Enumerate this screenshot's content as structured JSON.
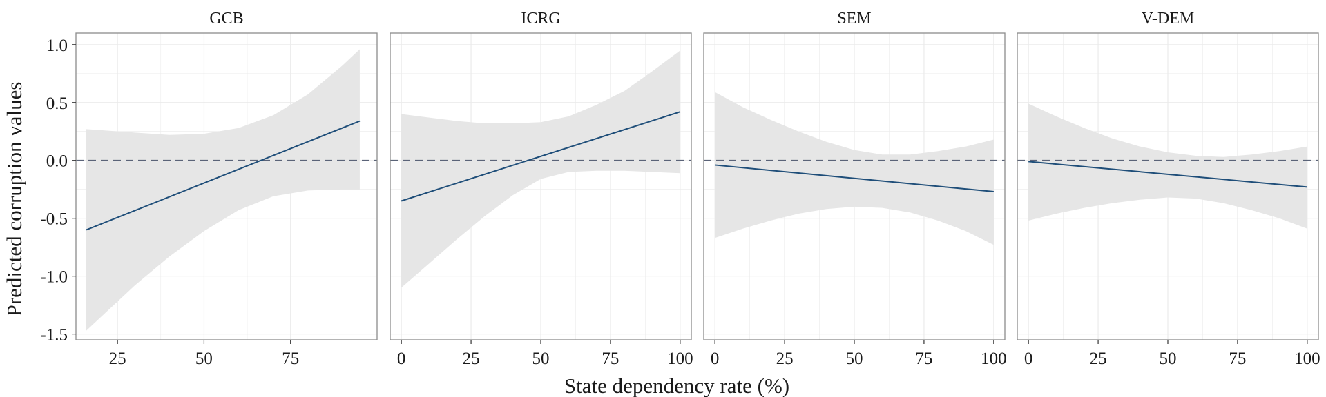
{
  "chart_data": {
    "type": "line",
    "xlabel": "State dependency rate (%)",
    "ylabel": "Predicted corruption values",
    "ylim": [
      -1.55,
      1.1
    ],
    "yticks": [
      1.0,
      0.5,
      0.0,
      -0.5,
      -1.0,
      -1.5
    ],
    "ytick_labels": [
      "1.0",
      "0.5",
      "0.0",
      "-0.5",
      "-1.0",
      "-1.5"
    ],
    "grid": true,
    "reference_line": {
      "y": 0,
      "style": "dashed"
    },
    "colors": {
      "line": "#1f4e79",
      "band": "#e6e6e6",
      "reference": "#5a6378",
      "grid": "#ebebeb",
      "frame": "#8c8c8c"
    },
    "panels": [
      {
        "title": "GCB",
        "xlim": [
          13,
          100
        ],
        "xticks": [
          25,
          50,
          75
        ],
        "xtick_labels": [
          "25",
          "50",
          "75"
        ],
        "line": {
          "x": [
            16,
            95
          ],
          "y": [
            -0.6,
            0.34
          ]
        },
        "band": {
          "x": [
            16,
            30,
            40,
            50,
            60,
            70,
            80,
            90,
            95
          ],
          "lower": [
            -1.47,
            -1.08,
            -0.83,
            -0.61,
            -0.43,
            -0.31,
            -0.26,
            -0.25,
            -0.25
          ],
          "upper": [
            0.27,
            0.24,
            0.22,
            0.23,
            0.28,
            0.39,
            0.57,
            0.82,
            0.96
          ]
        }
      },
      {
        "title": "ICRG",
        "xlim": [
          -4,
          104
        ],
        "xticks": [
          0,
          25,
          50,
          75,
          100
        ],
        "xtick_labels": [
          "0",
          "25",
          "50",
          "75",
          "100"
        ],
        "line": {
          "x": [
            0,
            100
          ],
          "y": [
            -0.35,
            0.42
          ]
        },
        "band": {
          "x": [
            0,
            10,
            20,
            30,
            40,
            50,
            60,
            70,
            80,
            90,
            100
          ],
          "lower": [
            -1.1,
            -0.89,
            -0.68,
            -0.48,
            -0.3,
            -0.16,
            -0.1,
            -0.09,
            -0.09,
            -0.1,
            -0.11
          ],
          "upper": [
            0.4,
            0.37,
            0.34,
            0.32,
            0.32,
            0.33,
            0.38,
            0.48,
            0.6,
            0.77,
            0.95
          ]
        }
      },
      {
        "title": "SEM",
        "xlim": [
          -4,
          104
        ],
        "xticks": [
          0,
          25,
          50,
          75,
          100
        ],
        "xtick_labels": [
          "0",
          "25",
          "50",
          "75",
          "100"
        ],
        "line": {
          "x": [
            0,
            100
          ],
          "y": [
            -0.04,
            -0.27
          ]
        },
        "band": {
          "x": [
            0,
            10,
            20,
            30,
            40,
            50,
            60,
            70,
            80,
            90,
            100
          ],
          "lower": [
            -0.67,
            -0.59,
            -0.52,
            -0.46,
            -0.42,
            -0.4,
            -0.41,
            -0.45,
            -0.52,
            -0.61,
            -0.73
          ],
          "upper": [
            0.59,
            0.46,
            0.35,
            0.25,
            0.16,
            0.09,
            0.05,
            0.05,
            0.08,
            0.12,
            0.18
          ]
        }
      },
      {
        "title": "V-DEM",
        "xlim": [
          -4,
          104
        ],
        "xticks": [
          0,
          25,
          50,
          75,
          100
        ],
        "xtick_labels": [
          "0",
          "25",
          "50",
          "75",
          "100"
        ],
        "line": {
          "x": [
            0,
            100
          ],
          "y": [
            -0.01,
            -0.23
          ]
        },
        "band": {
          "x": [
            0,
            10,
            20,
            30,
            40,
            50,
            60,
            70,
            80,
            90,
            100
          ],
          "lower": [
            -0.52,
            -0.46,
            -0.41,
            -0.37,
            -0.34,
            -0.32,
            -0.33,
            -0.37,
            -0.43,
            -0.5,
            -0.59
          ],
          "upper": [
            0.49,
            0.38,
            0.28,
            0.19,
            0.12,
            0.07,
            0.04,
            0.03,
            0.05,
            0.08,
            0.12
          ]
        }
      }
    ]
  }
}
